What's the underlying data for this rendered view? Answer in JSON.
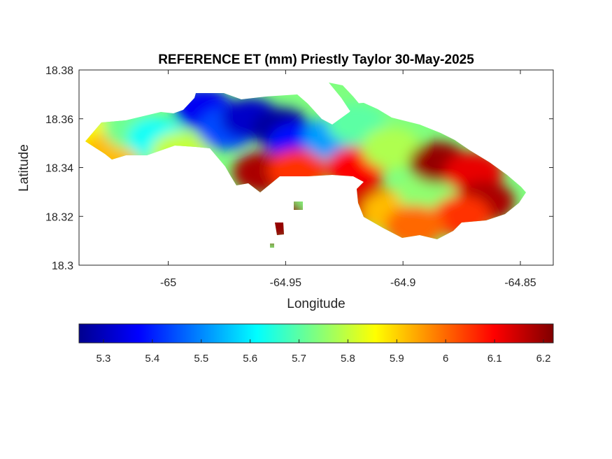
{
  "chart_data": {
    "type": "heatmap",
    "title": "REFERENCE ET (mm) Priestly Taylor 30-May-2025",
    "xlabel": "Longitude",
    "ylabel": "Latitude",
    "xlim": [
      -65.038,
      -64.836
    ],
    "ylim": [
      18.3,
      18.38
    ],
    "xticks": [
      -65,
      -64.95,
      -64.9,
      -64.85
    ],
    "xtick_labels": [
      "-65",
      "-64.95",
      "-64.9",
      "-64.85"
    ],
    "yticks": [
      18.3,
      18.32,
      18.34,
      18.36,
      18.38
    ],
    "ytick_labels": [
      "18.3",
      "18.32",
      "18.34",
      "18.36",
      "18.38"
    ],
    "colorbar": {
      "colormap": "jet",
      "orientation": "horizontal",
      "placement": "below",
      "range": [
        5.25,
        6.22
      ],
      "ticks": [
        5.3,
        5.4,
        5.5,
        5.6,
        5.7,
        5.8,
        5.9,
        6.0,
        6.1,
        6.2
      ],
      "tick_labels": [
        "5.3",
        "5.4",
        "5.5",
        "5.6",
        "5.7",
        "5.8",
        "5.9",
        "6",
        "6.1",
        "6.2"
      ]
    },
    "regions": [
      {
        "lon": -65.03,
        "lat": 18.352,
        "value": 5.85
      },
      {
        "lon": -65.025,
        "lat": 18.346,
        "value": 5.92
      },
      {
        "lon": -65.015,
        "lat": 18.356,
        "value": 5.72
      },
      {
        "lon": -65.005,
        "lat": 18.352,
        "value": 5.62
      },
      {
        "lon": -64.995,
        "lat": 18.346,
        "value": 5.8
      },
      {
        "lon": -64.985,
        "lat": 18.364,
        "value": 5.36
      },
      {
        "lon": -64.975,
        "lat": 18.356,
        "value": 5.44
      },
      {
        "lon": -64.965,
        "lat": 18.36,
        "value": 5.32
      },
      {
        "lon": -64.952,
        "lat": 18.356,
        "value": 5.28
      },
      {
        "lon": -64.945,
        "lat": 18.35,
        "value": 5.38
      },
      {
        "lon": -64.96,
        "lat": 18.338,
        "value": 6.18
      },
      {
        "lon": -64.945,
        "lat": 18.339,
        "value": 6.05
      },
      {
        "lon": -64.93,
        "lat": 18.352,
        "value": 5.52
      },
      {
        "lon": -64.92,
        "lat": 18.358,
        "value": 5.7
      },
      {
        "lon": -64.92,
        "lat": 18.34,
        "value": 6.1
      },
      {
        "lon": -64.905,
        "lat": 18.348,
        "value": 5.78
      },
      {
        "lon": -64.915,
        "lat": 18.325,
        "value": 6.14
      },
      {
        "lon": -64.905,
        "lat": 18.322,
        "value": 5.92
      },
      {
        "lon": -64.89,
        "lat": 18.33,
        "value": 5.75
      },
      {
        "lon": -64.885,
        "lat": 18.342,
        "value": 6.2
      },
      {
        "lon": -64.87,
        "lat": 18.338,
        "value": 6.12
      },
      {
        "lon": -64.865,
        "lat": 18.326,
        "value": 6.18
      },
      {
        "lon": -64.875,
        "lat": 18.32,
        "value": 6.05
      },
      {
        "lon": -64.895,
        "lat": 18.316,
        "value": 6.0
      },
      {
        "lon": -64.955,
        "lat": 18.318,
        "value": 6.2
      }
    ]
  },
  "colors": {
    "axes": "#262626",
    "background": "#ffffff",
    "jet_stops": [
      "#00008f",
      "#0000ff",
      "#00ffff",
      "#ffff00",
      "#ff0000",
      "#800000"
    ]
  }
}
